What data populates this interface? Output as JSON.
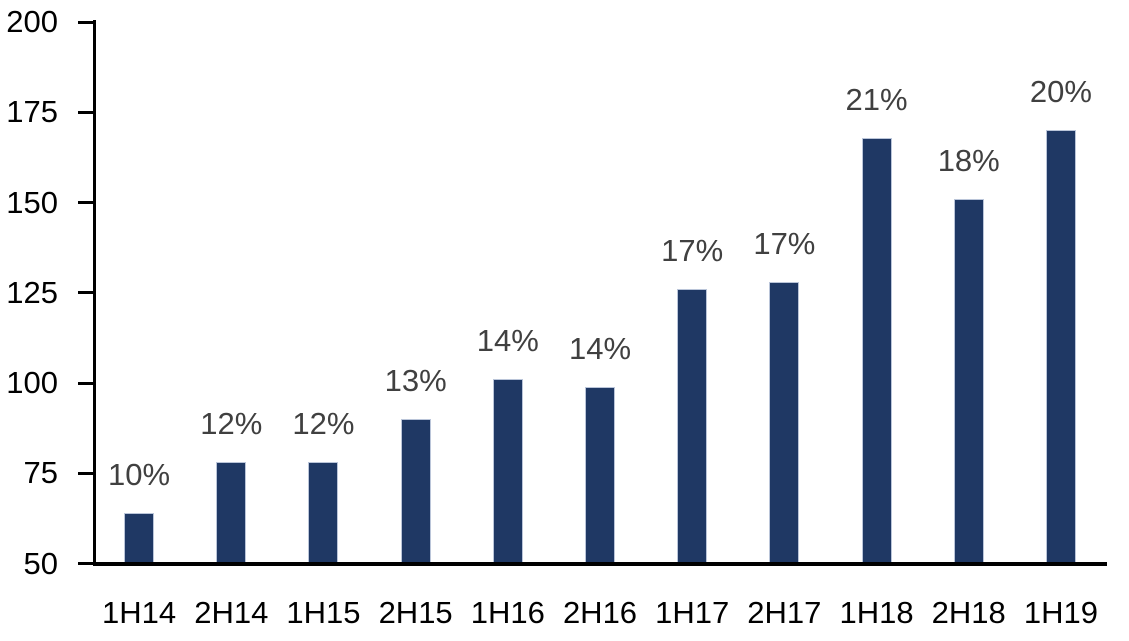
{
  "chart": {
    "background_color": "#ffffff",
    "bar_color": "#1F3864",
    "bar_border_color": "#BAC5D9",
    "data_label_color": "#404040",
    "axis_color": "#000000",
    "tick_label_color": "#000000"
  },
  "chart_data": {
    "type": "bar",
    "title": "",
    "xlabel": "",
    "ylabel": "",
    "categories": [
      "1H14",
      "2H14",
      "1H15",
      "2H15",
      "1H16",
      "2H16",
      "1H17",
      "2H17",
      "1H18",
      "2H18",
      "1H19"
    ],
    "values": [
      64,
      78,
      78,
      90,
      101,
      99,
      126,
      128,
      168,
      151,
      170
    ],
    "data_labels": [
      "10%",
      "12%",
      "12%",
      "13%",
      "14%",
      "14%",
      "17%",
      "17%",
      "21%",
      "18%",
      "20%"
    ],
    "ylim": [
      50,
      200
    ],
    "yticks": [
      50,
      75,
      100,
      125,
      150,
      175,
      200
    ],
    "grid": false,
    "legend": null
  }
}
